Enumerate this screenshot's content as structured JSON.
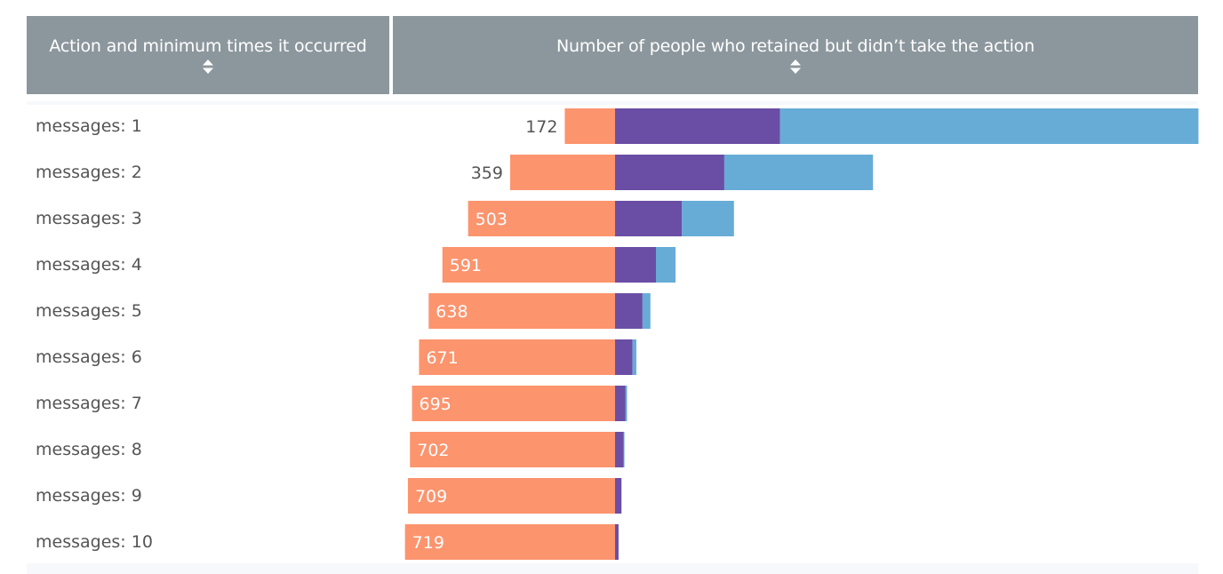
{
  "header": {
    "left_title": "Action and minimum times it occurred",
    "right_title": "Number of people who retained but didn’t take the action"
  },
  "colors": {
    "header_bg": "#8c979d",
    "orange": "#fc946e",
    "purple": "#6a4ea5",
    "blue": "#66acd7",
    "label_text": "#555555"
  },
  "chart_data": {
    "type": "bar",
    "orientation": "horizontal-diverging",
    "categories": [
      "messages: 1",
      "messages: 2",
      "messages: 3",
      "messages: 4",
      "messages: 5",
      "messages: 6",
      "messages: 7",
      "messages: 8",
      "messages: 9",
      "messages: 10"
    ],
    "series": [
      {
        "name": "retained but didn’t take the action",
        "color": "#fc946e",
        "direction": "left",
        "values": [
          172,
          359,
          503,
          591,
          638,
          671,
          695,
          702,
          709,
          719
        ]
      },
      {
        "name": "purple segment",
        "color": "#6a4ea5",
        "direction": "right",
        "values": [
          565,
          374,
          229,
          140,
          94,
          60,
          36,
          29,
          22,
          12
        ]
      },
      {
        "name": "blue segment",
        "color": "#66acd7",
        "direction": "right",
        "values": [
          1432,
          509,
          178,
          67,
          27,
          13,
          5,
          3,
          0,
          0
        ]
      }
    ],
    "data_labels": [
      "172",
      "359",
      "503",
      "591",
      "638",
      "671",
      "695",
      "702",
      "709",
      "719"
    ]
  }
}
